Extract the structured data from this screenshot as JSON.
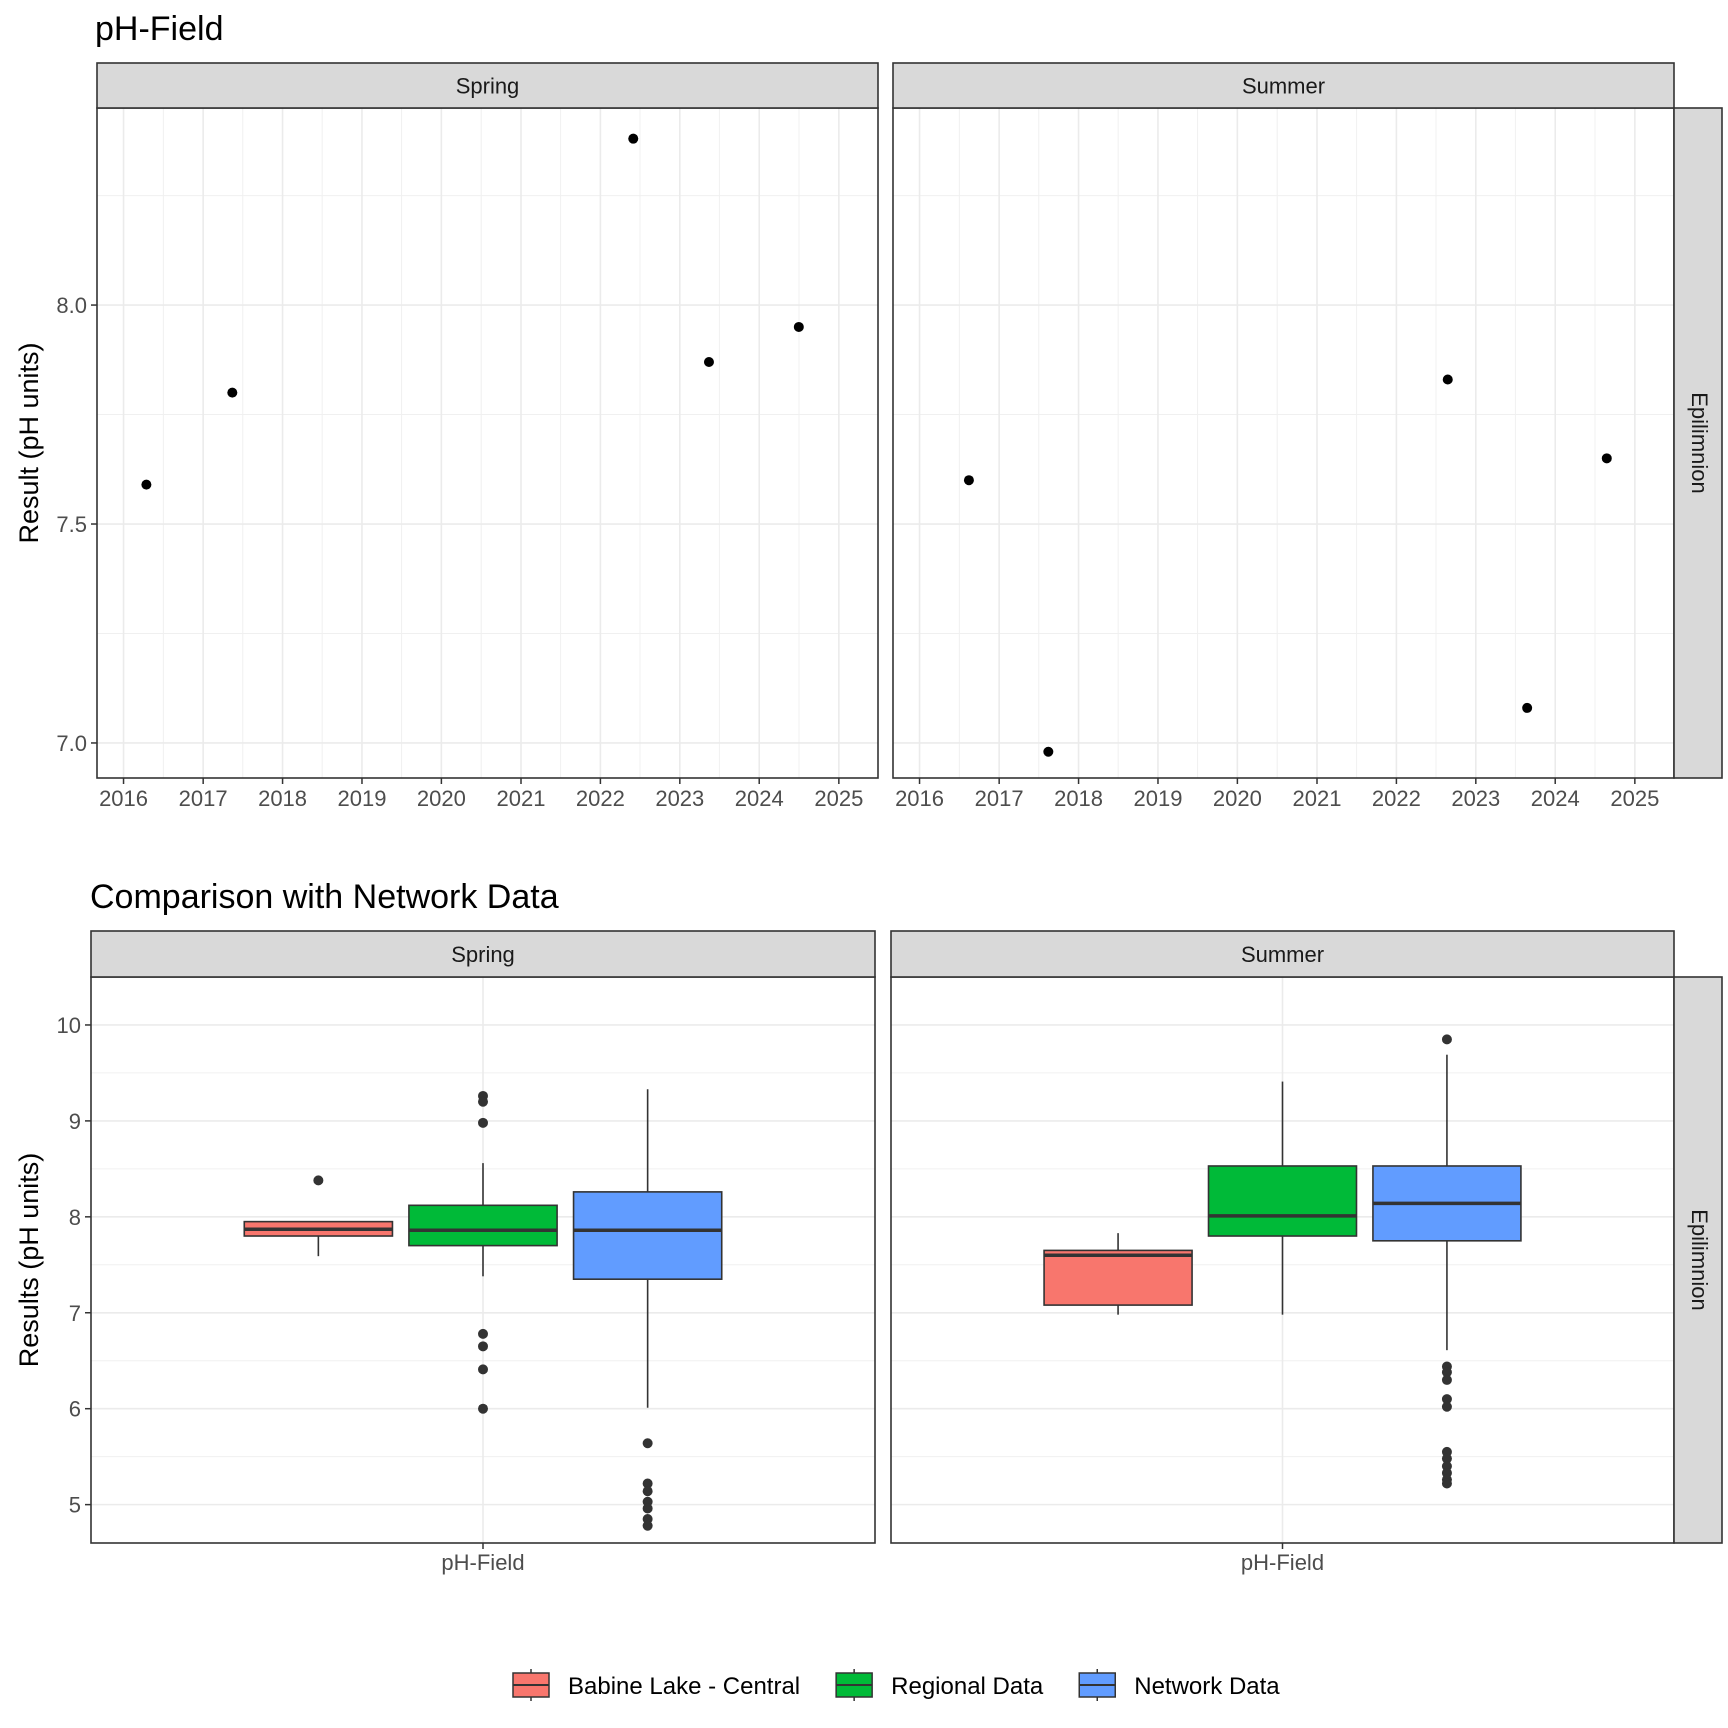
{
  "chart_data": [
    {
      "type": "scatter",
      "title": "pH-Field",
      "ylabel": "Result (pH units)",
      "xlim": [
        "2015-09-01",
        "2025-06-30"
      ],
      "ylim": [
        6.92,
        8.45
      ],
      "x_ticks": [
        "2016",
        "2017",
        "2018",
        "2019",
        "2020",
        "2021",
        "2022",
        "2023",
        "2024",
        "2025"
      ],
      "y_ticks": [
        "7.0",
        "7.5",
        "8.0"
      ],
      "row_strip": "Epilimnion",
      "grid": true,
      "panels": [
        {
          "strip": "Spring",
          "points": [
            {
              "x": "2016-04-15",
              "y": 7.59
            },
            {
              "x": "2017-05-15",
              "y": 7.8
            },
            {
              "x": "2022-06-01",
              "y": 8.38
            },
            {
              "x": "2023-05-15",
              "y": 7.87
            },
            {
              "x": "2024-07-01",
              "y": 7.95
            }
          ]
        },
        {
          "strip": "Summer",
          "points": [
            {
              "x": "2016-08-15",
              "y": 7.6
            },
            {
              "x": "2017-08-15",
              "y": 6.98
            },
            {
              "x": "2022-08-25",
              "y": 7.83
            },
            {
              "x": "2023-08-25",
              "y": 7.08
            },
            {
              "x": "2024-08-25",
              "y": 7.65
            }
          ]
        }
      ]
    },
    {
      "type": "box",
      "title": "Comparison with Network Data",
      "ylabel": "Results (pH units)",
      "categories": [
        "pH-Field"
      ],
      "ylim": [
        4.6,
        10.5
      ],
      "y_ticks": [
        "5",
        "6",
        "7",
        "8",
        "9",
        "10"
      ],
      "row_strip": "Epilimnion",
      "grid": true,
      "legend": {
        "position": "bottom",
        "entries": [
          {
            "name": "Babine Lake - Central",
            "color": "#F8766D"
          },
          {
            "name": "Regional Data",
            "color": "#00BA38"
          },
          {
            "name": "Network Data",
            "color": "#619CFF"
          }
        ]
      },
      "panels": [
        {
          "strip": "Spring",
          "x_label": "pH-Field",
          "boxes": [
            {
              "group": "Babine Lake - Central",
              "min": 7.59,
              "q1": 7.8,
              "median": 7.87,
              "q3": 7.95,
              "max": 7.95,
              "outliers": [
                8.38
              ]
            },
            {
              "group": "Regional Data",
              "min": 7.38,
              "q1": 7.7,
              "median": 7.86,
              "q3": 8.12,
              "max": 8.56,
              "outliers": [
                9.26,
                9.2,
                8.98,
                6.78,
                6.65,
                6.41,
                6.0
              ]
            },
            {
              "group": "Network Data",
              "min": 6.01,
              "q1": 7.35,
              "median": 7.86,
              "q3": 8.26,
              "max": 9.33,
              "outliers": [
                5.64,
                5.22,
                5.14,
                5.03,
                4.96,
                4.85,
                4.78
              ]
            }
          ]
        },
        {
          "strip": "Summer",
          "x_label": "pH-Field",
          "boxes": [
            {
              "group": "Babine Lake - Central",
              "min": 6.98,
              "q1": 7.08,
              "median": 7.6,
              "q3": 7.65,
              "max": 7.83,
              "outliers": []
            },
            {
              "group": "Regional Data",
              "min": 6.98,
              "q1": 7.8,
              "median": 8.01,
              "q3": 8.53,
              "max": 9.41,
              "outliers": []
            },
            {
              "group": "Network Data",
              "min": 6.61,
              "q1": 7.75,
              "median": 8.14,
              "q3": 8.53,
              "max": 9.69,
              "outliers": [
                9.85,
                6.44,
                6.38,
                6.3,
                6.1,
                6.02,
                5.55,
                5.48,
                5.4,
                5.33,
                5.26,
                5.22
              ]
            }
          ]
        }
      ]
    }
  ]
}
